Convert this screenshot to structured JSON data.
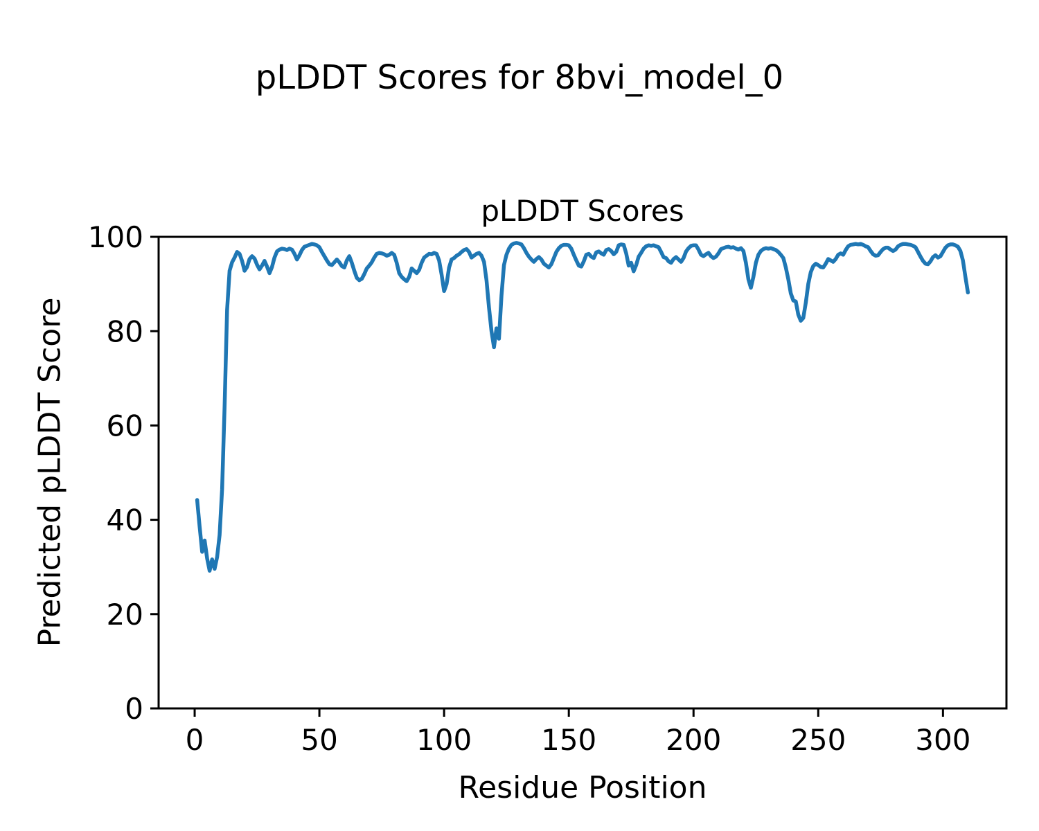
{
  "figure": {
    "suptitle": "pLDDT Scores for 8bvi_model_0"
  },
  "chart_data": {
    "type": "line",
    "title": "pLDDT Scores",
    "xlabel": "Residue Position",
    "ylabel": "Predicted pLDDT Score",
    "xlim": [
      -14.45,
      325.45
    ],
    "ylim": [
      0,
      100
    ],
    "xticks": [
      0,
      50,
      100,
      150,
      200,
      250,
      300
    ],
    "yticks": [
      0,
      20,
      40,
      60,
      80,
      100
    ],
    "grid": false,
    "legend_position": "none",
    "line_color": "#1f77b4",
    "spine_color": "#000000",
    "background_color": "#ffffff",
    "series": [
      {
        "name": "pLDDT",
        "x_start": 1,
        "x_step": 1,
        "y": [
          44.2,
          38.5,
          33.2,
          35.6,
          31.8,
          29.2,
          31.6,
          29.6,
          32.1,
          36.8,
          46.5,
          64.0,
          84.5,
          92.8,
          94.6,
          95.6,
          96.8,
          96.4,
          94.9,
          92.8,
          93.6,
          95.3,
          95.9,
          95.4,
          94.1,
          93.1,
          93.9,
          94.9,
          93.7,
          92.3,
          93.6,
          95.6,
          96.9,
          97.3,
          97.5,
          97.4,
          97.2,
          97.5,
          97.3,
          96.4,
          95.2,
          96.1,
          97.2,
          97.9,
          98.1,
          98.3,
          98.5,
          98.4,
          98.2,
          97.8,
          96.8,
          95.9,
          95.0,
          94.2,
          94.0,
          94.6,
          95.2,
          94.6,
          93.8,
          93.5,
          95.0,
          95.9,
          94.5,
          92.8,
          91.3,
          90.8,
          91.1,
          92.1,
          93.3,
          93.9,
          94.6,
          95.6,
          96.4,
          96.6,
          96.5,
          96.3,
          96.0,
          96.2,
          96.6,
          96.2,
          94.5,
          92.3,
          91.5,
          91.0,
          90.6,
          91.5,
          93.3,
          92.8,
          92.3,
          93.0,
          94.5,
          95.6,
          96.0,
          96.4,
          96.3,
          96.6,
          96.4,
          95.0,
          92.0,
          88.5,
          90.0,
          93.5,
          95.2,
          95.5,
          96.0,
          96.3,
          96.8,
          97.2,
          97.4,
          96.8,
          95.6,
          96.0,
          96.4,
          96.6,
          96.0,
          94.7,
          90.8,
          85.0,
          80.0,
          76.6,
          80.6,
          78.4,
          87.5,
          94.0,
          96.2,
          97.5,
          98.3,
          98.6,
          98.7,
          98.6,
          98.4,
          97.6,
          96.6,
          95.8,
          95.2,
          94.7,
          95.3,
          95.7,
          95.2,
          94.3,
          93.9,
          93.5,
          94.2,
          95.5,
          96.8,
          97.6,
          98.1,
          98.3,
          98.3,
          98.2,
          97.5,
          96.2,
          95.0,
          93.9,
          93.7,
          94.8,
          96.2,
          96.4,
          95.8,
          95.5,
          96.7,
          96.9,
          96.5,
          96.2,
          97.2,
          97.4,
          97.0,
          96.3,
          96.8,
          98.2,
          98.4,
          98.3,
          96.5,
          93.9,
          94.5,
          92.7,
          94.0,
          95.8,
          96.6,
          97.5,
          98.0,
          98.2,
          98.1,
          98.2,
          98.0,
          97.8,
          96.8,
          95.7,
          95.5,
          94.8,
          94.5,
          95.3,
          95.7,
          95.2,
          94.7,
          95.5,
          96.9,
          97.6,
          98.1,
          98.2,
          98.2,
          97.3,
          96.2,
          95.9,
          96.3,
          96.6,
          95.9,
          95.5,
          95.8,
          96.5,
          97.4,
          97.6,
          97.8,
          97.9,
          97.7,
          97.8,
          97.5,
          97.3,
          97.6,
          97.0,
          94.5,
          91.0,
          89.2,
          91.5,
          94.5,
          96.2,
          97.0,
          97.4,
          97.6,
          97.5,
          97.6,
          97.4,
          97.2,
          96.8,
          96.2,
          95.5,
          93.5,
          91.0,
          88.0,
          86.5,
          86.3,
          83.5,
          82.2,
          82.8,
          86.0,
          90.0,
          92.5,
          93.8,
          94.3,
          94.0,
          93.6,
          93.5,
          94.3,
          95.3,
          95.0,
          94.7,
          95.3,
          96.2,
          96.5,
          96.2,
          97.2,
          98.0,
          98.3,
          98.4,
          98.5,
          98.4,
          98.5,
          98.3,
          98.0,
          97.8,
          97.0,
          96.3,
          96.0,
          96.1,
          96.8,
          97.4,
          97.7,
          97.7,
          97.3,
          97.0,
          97.3,
          98.0,
          98.3,
          98.5,
          98.5,
          98.4,
          98.3,
          98.1,
          97.8,
          96.8,
          95.8,
          94.9,
          94.3,
          94.2,
          94.8,
          95.7,
          96.1,
          95.6,
          95.9,
          96.8,
          97.7,
          98.2,
          98.4,
          98.4,
          98.2,
          97.9,
          97.0,
          95.0,
          91.5,
          88.2
        ]
      }
    ]
  }
}
